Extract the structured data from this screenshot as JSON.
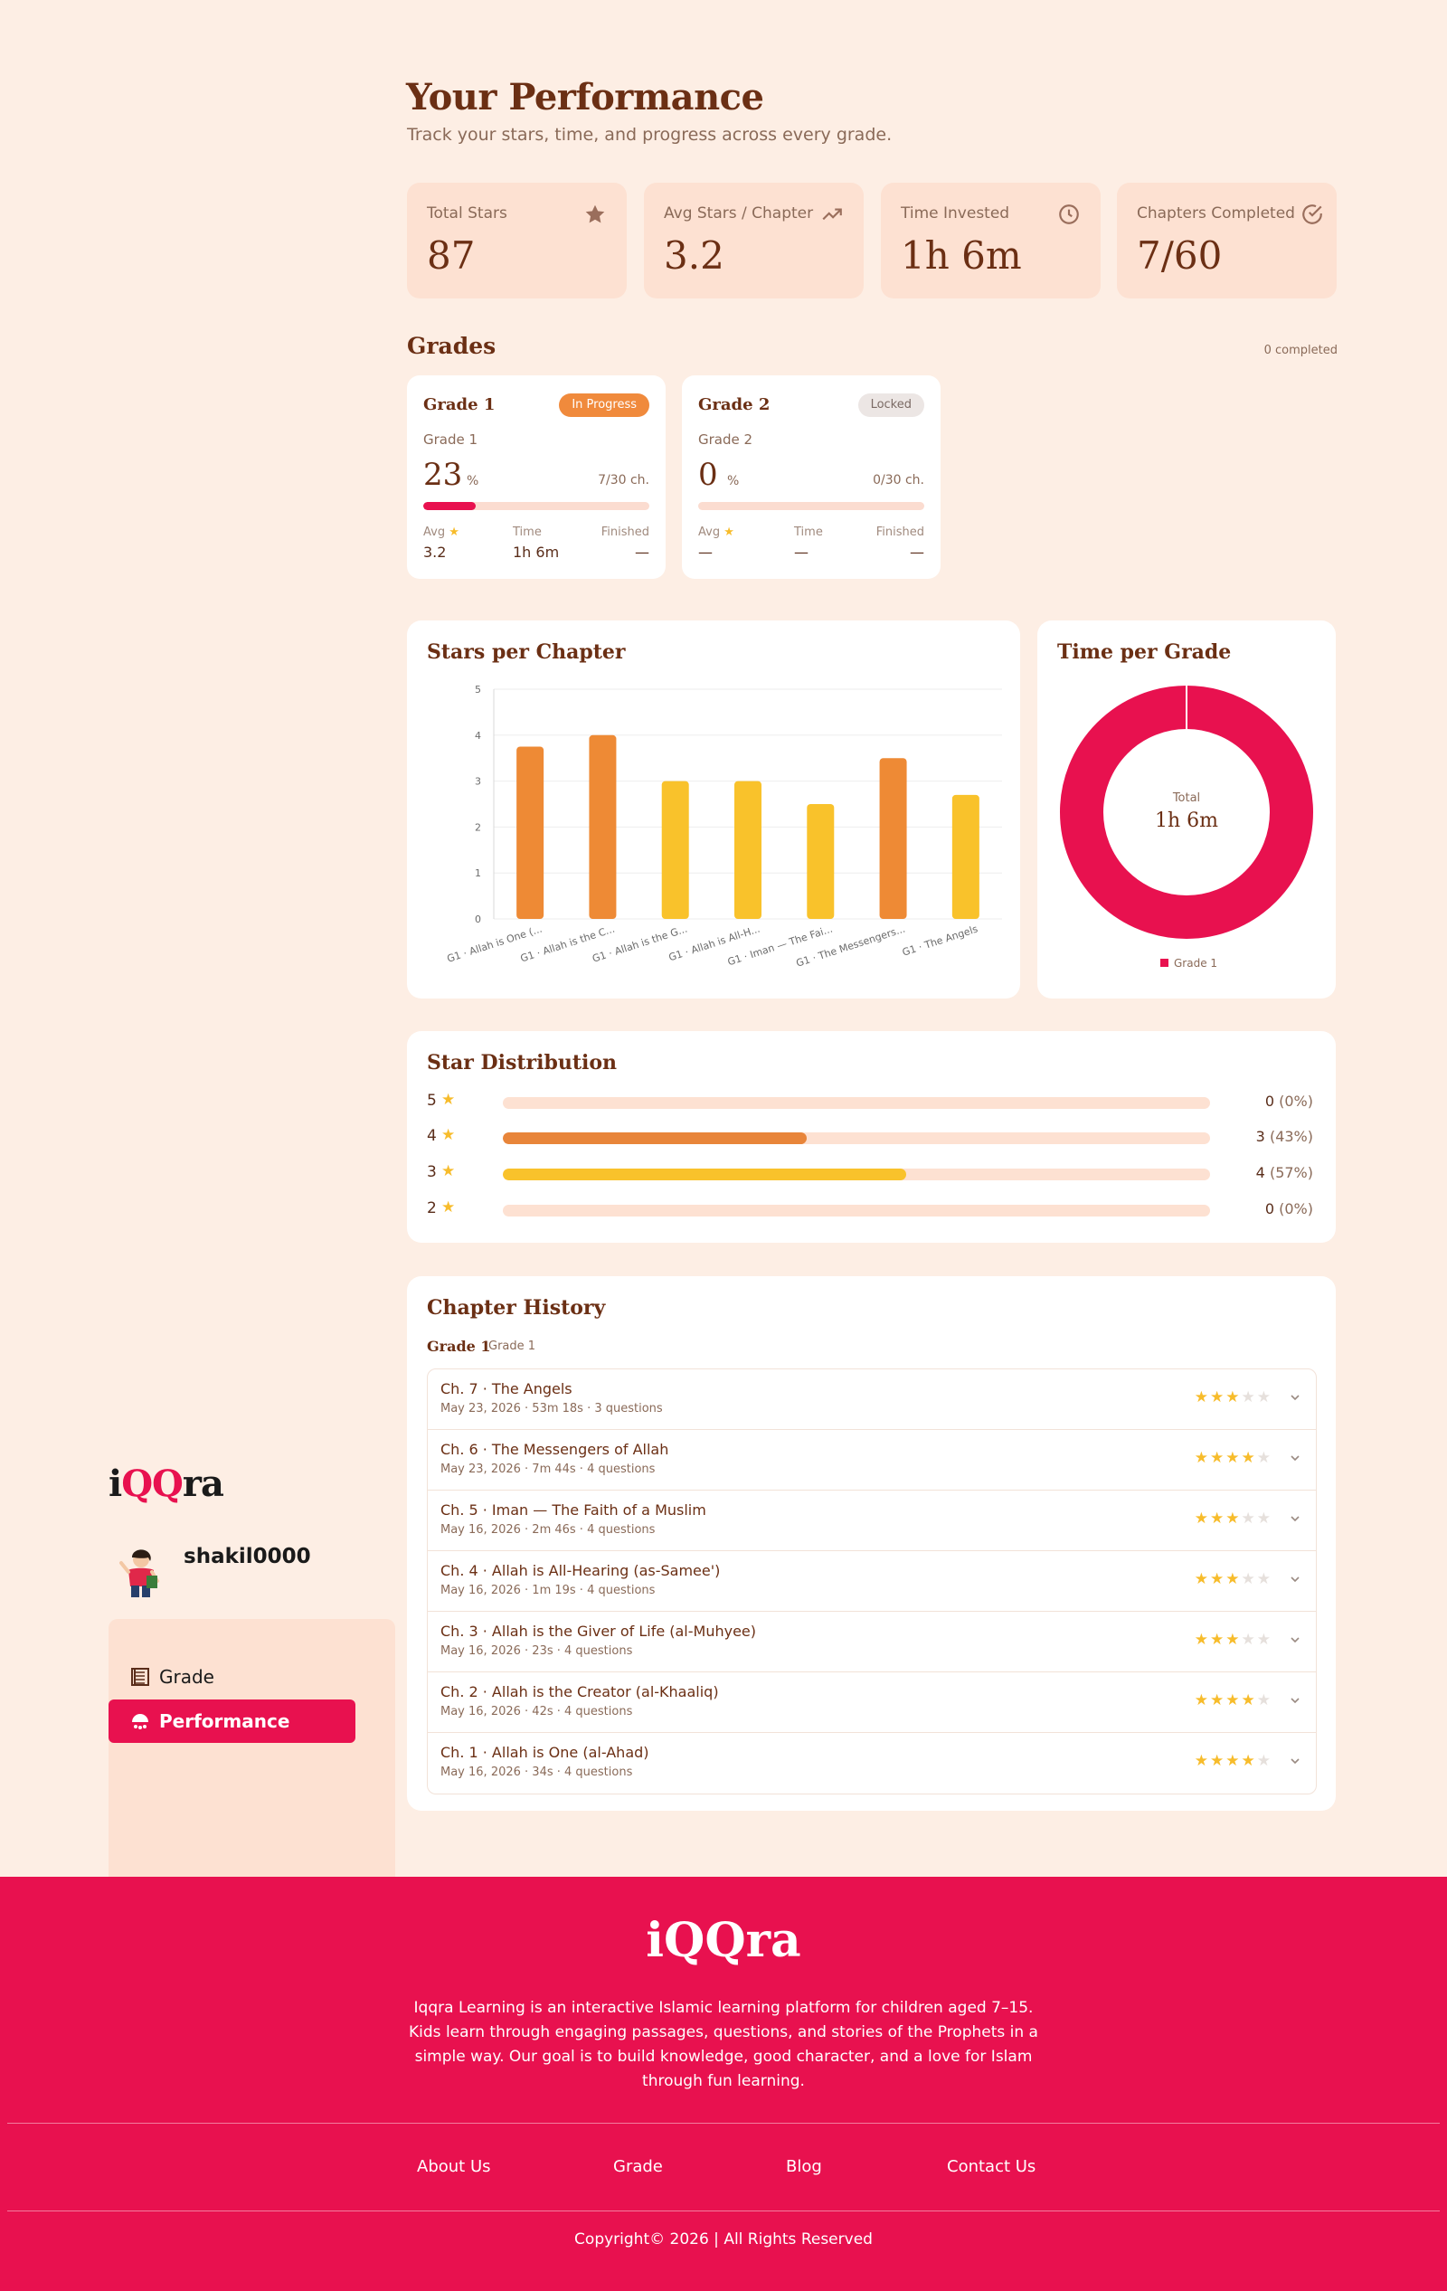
{
  "header": {
    "title": "Your Performance",
    "subtitle": "Track your stars, time, and progress across every grade."
  },
  "stats": [
    {
      "label": "Total Stars",
      "value": "87",
      "icon": "star-icon"
    },
    {
      "label": "Avg Stars / Chapter",
      "value": "3.2",
      "icon": "trend-up-icon"
    },
    {
      "label": "Time Invested",
      "value": "1h 6m",
      "icon": "clock-icon"
    },
    {
      "label": "Chapters Completed",
      "value": "7/60",
      "icon": "check-circle-icon"
    }
  ],
  "grades": {
    "title": "Grades",
    "completed": "0 completed",
    "cards": [
      {
        "name": "Grade 1",
        "badge": "In Progress",
        "sub": "Grade 1",
        "percent": "23",
        "percent_sign": "%",
        "chapters": "7/30 ch.",
        "progress": 0.23,
        "avg_label": "Avg",
        "avg": "3.2",
        "time_label": "Time",
        "time": "1h 6m",
        "finished_label": "Finished",
        "finished": "—"
      },
      {
        "name": "Grade 2",
        "badge": "Locked",
        "sub": "Grade 2",
        "percent": "0",
        "percent_sign": "%",
        "chapters": "0/30 ch.",
        "progress": 0,
        "avg_label": "Avg",
        "avg": "—",
        "time_label": "Time",
        "time": "—",
        "finished_label": "Finished",
        "finished": "—"
      }
    ]
  },
  "stars_chart": {
    "title": "Stars per Chapter"
  },
  "chart_data": [
    {
      "type": "bar",
      "title": "Stars per Chapter",
      "categories": [
        "G1 · Allah is One (...",
        "G1 · Allah is the C...",
        "G1 · Allah is the G...",
        "G1 · Allah is All-H...",
        "G1 · Iman — The Fai...",
        "G1 · The Messengers...",
        "G1 · The Angels"
      ],
      "values": [
        3.75,
        4,
        3,
        3,
        2.5,
        3.5,
        2.7
      ],
      "colors": [
        "#ee8a35",
        "#ee8a35",
        "#f9c22b",
        "#f9c22b",
        "#f9c22b",
        "#ee8a35",
        "#f9c22b"
      ],
      "yticks": [
        "0",
        "1",
        "2",
        "3",
        "4",
        "5"
      ],
      "ylim": [
        0,
        5
      ],
      "grid": true
    },
    {
      "type": "pie",
      "title": "Time per Grade",
      "categories": [
        "Grade 1"
      ],
      "values": [
        1
      ],
      "colors": [
        "#e8114f"
      ],
      "center_label": "Total",
      "center_value": "1h 6m",
      "legend": "bottom"
    }
  ],
  "time_chart": {
    "title": "Time per Grade",
    "center_label": "Total",
    "center_value": "1h 6m",
    "legend_item": "Grade 1"
  },
  "distribution": {
    "title": "Star Distribution",
    "rows": [
      {
        "stars": "5",
        "count": "0",
        "pct": "(0%)",
        "fraction": 0,
        "color": "#ee8a35"
      },
      {
        "stars": "4",
        "count": "3",
        "pct": "(43%)",
        "fraction": 0.43,
        "color": "#e8853a"
      },
      {
        "stars": "3",
        "count": "4",
        "pct": "(57%)",
        "fraction": 0.57,
        "color": "#f9c22b"
      },
      {
        "stars": "2",
        "count": "0",
        "pct": "(0%)",
        "fraction": 0,
        "color": "#f9c22b"
      }
    ]
  },
  "history": {
    "title": "Chapter History",
    "grade": "Grade 1",
    "grade_sub": "Grade 1",
    "items": [
      {
        "title": "Ch. 7 · The Angels",
        "meta": "May 23, 2026 · 53m 18s · 3 questions",
        "stars": 3
      },
      {
        "title": "Ch. 6 · The Messengers of Allah",
        "meta": "May 23, 2026 · 7m 44s · 4 questions",
        "stars": 4
      },
      {
        "title": "Ch. 5 · Iman — The Faith of a Muslim",
        "meta": "May 16, 2026 · 2m 46s · 4 questions",
        "stars": 3
      },
      {
        "title": "Ch. 4 · Allah is All-Hearing (as-Samee')",
        "meta": "May 16, 2026 · 1m 19s · 4 questions",
        "stars": 3
      },
      {
        "title": "Ch. 3 · Allah is the Giver of Life (al-Muhyee)",
        "meta": "May 16, 2026 · 23s · 4 questions",
        "stars": 3
      },
      {
        "title": "Ch. 2 · Allah is the Creator (al-Khaaliq)",
        "meta": "May 16, 2026 · 42s · 4 questions",
        "stars": 4
      },
      {
        "title": "Ch. 1 · Allah is One (al-Ahad)",
        "meta": "May 16, 2026 · 34s · 4 questions",
        "stars": 4
      }
    ]
  },
  "sidebar": {
    "brand_i": "i",
    "brand_qq": "QQ",
    "brand_ra": "ra",
    "username": "shakil0000",
    "nav": [
      {
        "label": "Grade",
        "icon": "book-icon"
      },
      {
        "label": "Performance",
        "icon": "chart-icon"
      }
    ]
  },
  "footer": {
    "brand": "iQQra",
    "description": "Iqqra Learning is an interactive Islamic learning platform for children aged 7–15. Kids learn through engaging passages, questions, and stories of the Prophets in a simple way. Our goal is to build knowledge, good character, and a love for Islam through fun learning.",
    "links": [
      "About Us",
      "Grade",
      "Blog",
      "Contact Us"
    ],
    "copyright": "Copyright© 2026 | All Rights Reserved"
  },
  "colors": {
    "background": "#fdeee4",
    "card": "#fde1d2",
    "accent": "#e8114f",
    "orange": "#ee8a35",
    "yellow": "#f9c22b",
    "brown": "#6b2f14"
  }
}
